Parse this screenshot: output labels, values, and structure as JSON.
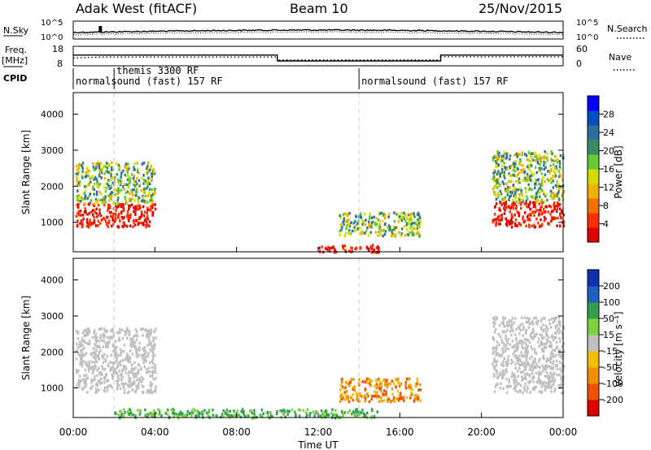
{
  "header": {
    "radar_title": "Adak West (fitACF)",
    "beam_label": "Beam 10",
    "date_label": "25/Nov/2015"
  },
  "chart_data": [
    {
      "type": "line",
      "panel": "noise-and-search",
      "left_label": "N.Sky",
      "right_label": "N.Search",
      "left_ticks": [
        "10^5",
        "10^0"
      ],
      "right_ticks": [
        "10^5",
        "10^0"
      ]
    },
    {
      "type": "line",
      "panel": "frequency-and-nave",
      "left_label_top": "Freq.",
      "left_label_bottom": "[MHz]",
      "right_label": "Nave",
      "left_ticks": [
        "18",
        "8"
      ],
      "right_ticks": [
        "60",
        "0"
      ],
      "freq_series": {
        "x": [
          "00:00",
          "10:00",
          "10:00",
          "18:00",
          "18:00",
          "24:00"
        ],
        "y": [
          13.5,
          13.5,
          10.5,
          10.5,
          13.5,
          13.5
        ]
      },
      "nave_series": {
        "x": [
          "00:00",
          "01:30",
          "10:00",
          "10:00",
          "18:00",
          "18:00",
          "24:00"
        ],
        "y": [
          24,
          27,
          27,
          18,
          18,
          28,
          28
        ]
      }
    },
    {
      "type": "table",
      "panel": "cpid",
      "label": "CPID",
      "programs": [
        {
          "name": "normalsound (fast) 157 RF",
          "start": "00:00"
        },
        {
          "name": "themis 3300 RF",
          "start": "02:00"
        },
        {
          "name": "normalsound (fast) 157 RF",
          "start": "14:00"
        }
      ]
    },
    {
      "type": "heatmap",
      "panel": "power",
      "ylabel": "Slant Range [km]",
      "yticks": [
        1000,
        2000,
        3000,
        4000
      ],
      "ylim": [
        180,
        4600
      ],
      "xlim": [
        "00:00",
        "24:00"
      ],
      "colorbar": {
        "label": "Power [dB]",
        "ticks": [
          "4",
          "8",
          "12",
          "16",
          "20",
          "24",
          "28"
        ],
        "colors": [
          "#0000ff",
          "#0050c0",
          "#2e6fa0",
          "#3a8c60",
          "#66cc33",
          "#d4dc00",
          "#f0b000",
          "#f07000",
          "#ff3000",
          "#e00000"
        ]
      },
      "regions": [
        {
          "x": [
            0.1,
            4.0
          ],
          "y": [
            900,
            1550
          ],
          "level": "high"
        },
        {
          "x": [
            0.1,
            4.0
          ],
          "y": [
            1550,
            2700
          ],
          "level": "mid"
        },
        {
          "x": [
            13.0,
            17.0
          ],
          "y": [
            650,
            1300
          ],
          "level": "mid"
        },
        {
          "x": [
            12.0,
            15.0
          ],
          "y": [
            200,
            400
          ],
          "level": "high"
        },
        {
          "x": [
            20.5,
            24.0
          ],
          "y": [
            900,
            1600
          ],
          "level": "high"
        },
        {
          "x": [
            20.5,
            24.0
          ],
          "y": [
            1600,
            3000
          ],
          "level": "mid"
        }
      ]
    },
    {
      "type": "heatmap",
      "panel": "velocity",
      "ylabel": "Slant Range [km]",
      "yticks": [
        1000,
        2000,
        3000,
        4000
      ],
      "ylim": [
        180,
        4600
      ],
      "xlabel": "Time UT",
      "xticks": [
        "00:00",
        "04:00",
        "08:00",
        "12:00",
        "16:00",
        "20:00",
        "00:00"
      ],
      "colorbar": {
        "label": "Velocity [m s⁻¹]",
        "ticks": [
          "200",
          "100",
          "50",
          "15",
          "-15",
          "-50",
          "-100",
          "-200"
        ],
        "colors": [
          "#1030b0",
          "#2060c0",
          "#30a050",
          "#80d040",
          "#c0c0c0",
          "#f0c000",
          "#f09000",
          "#f05000",
          "#e00000"
        ]
      },
      "regions": [
        {
          "x": [
            0.1,
            4.0
          ],
          "y": [
            900,
            1550
          ],
          "level": "gray"
        },
        {
          "x": [
            0.1,
            4.0
          ],
          "y": [
            1550,
            2700
          ],
          "level": "gray"
        },
        {
          "x": [
            13.0,
            17.0
          ],
          "y": [
            650,
            1300
          ],
          "level": "orange"
        },
        {
          "x": [
            2.0,
            15.0
          ],
          "y": [
            200,
            450
          ],
          "level": "green"
        },
        {
          "x": [
            20.5,
            24.0
          ],
          "y": [
            900,
            1600
          ],
          "level": "gray"
        },
        {
          "x": [
            20.5,
            24.0
          ],
          "y": [
            1600,
            3000
          ],
          "level": "gray"
        }
      ]
    }
  ]
}
